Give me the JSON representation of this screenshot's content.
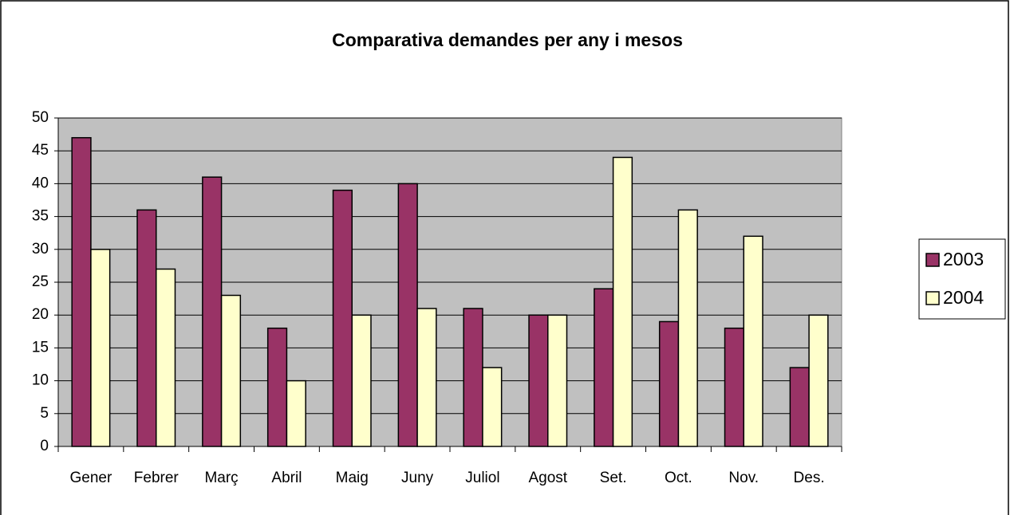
{
  "chart_data": {
    "type": "bar",
    "title": "Comparativa demandes per any i mesos",
    "categories": [
      "Gener",
      "Febrer",
      "Març",
      "Abril",
      "Maig",
      "Juny",
      "Juliol",
      "Agost",
      "Set.",
      "Oct.",
      "Nov.",
      "Des."
    ],
    "series": [
      {
        "name": "2003",
        "color": "#993366",
        "values": [
          47,
          36,
          41,
          18,
          39,
          40,
          21,
          20,
          24,
          19,
          18,
          12
        ]
      },
      {
        "name": "2004",
        "color": "#ffffcc",
        "values": [
          30,
          27,
          23,
          10,
          20,
          21,
          12,
          20,
          44,
          36,
          32,
          20
        ]
      }
    ],
    "ylim": [
      0,
      50
    ],
    "yticks": [
      0,
      5,
      10,
      15,
      20,
      25,
      30,
      35,
      40,
      45,
      50
    ],
    "grid": true,
    "legend": "right"
  }
}
